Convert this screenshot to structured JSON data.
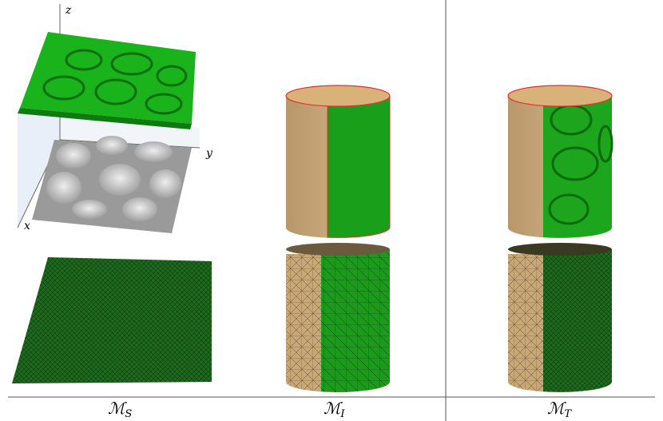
{
  "figure": {
    "axis_labels": {
      "z": "z",
      "y": "y",
      "x": "x"
    },
    "captions": [
      {
        "symbol": "ℳ",
        "subscript": "S"
      },
      {
        "symbol": "ℳ",
        "subscript": "I"
      },
      {
        "symbol": "ℳ",
        "subscript": "T"
      }
    ]
  }
}
